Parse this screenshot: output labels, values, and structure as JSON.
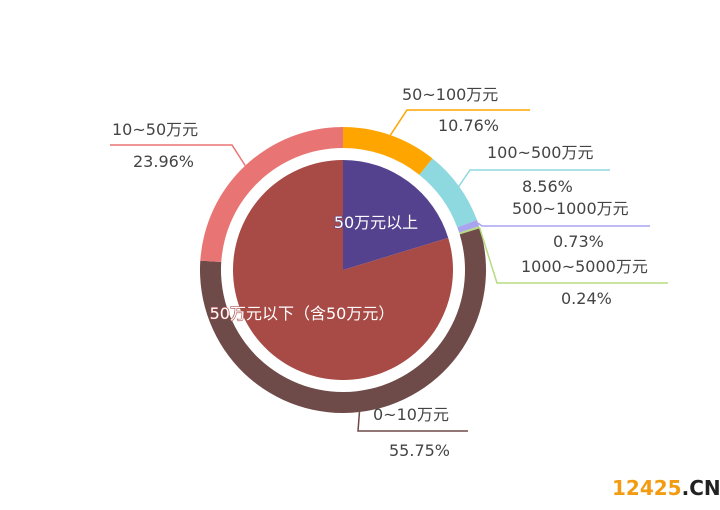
{
  "chart_data": {
    "type": "pie",
    "inner": {
      "slices": [
        {
          "label": "50万元以上",
          "value": 20.29,
          "color": "#54428E"
        },
        {
          "label": "50万元以下（含50万元）",
          "value": 79.71,
          "color": "#A84A45"
        }
      ]
    },
    "outer": {
      "slices": [
        {
          "label": "50~100万元",
          "value_label": "10.76%",
          "value": 10.76,
          "color": "#FFA500"
        },
        {
          "label": "100~500万元",
          "value_label": "8.56%",
          "value": 8.56,
          "color": "#8ED8E0"
        },
        {
          "label": "500~1000万元",
          "value_label": "0.73%",
          "value": 0.73,
          "color": "#A9A4EE"
        },
        {
          "label": "1000~5000万元",
          "value_label": "0.24%",
          "value": 0.24,
          "color": "#B5DC7F"
        },
        {
          "label": "0~10万元",
          "value_label": "55.75%",
          "value": 55.75,
          "color": "#6E4A48"
        },
        {
          "label": "10~50万元",
          "value_label": "23.96%",
          "value": 23.96,
          "color": "#E87573"
        }
      ]
    }
  },
  "watermark": {
    "part1": "12425",
    "part2": ".CN",
    "color1": "#F39C12",
    "color2": "#222222"
  }
}
